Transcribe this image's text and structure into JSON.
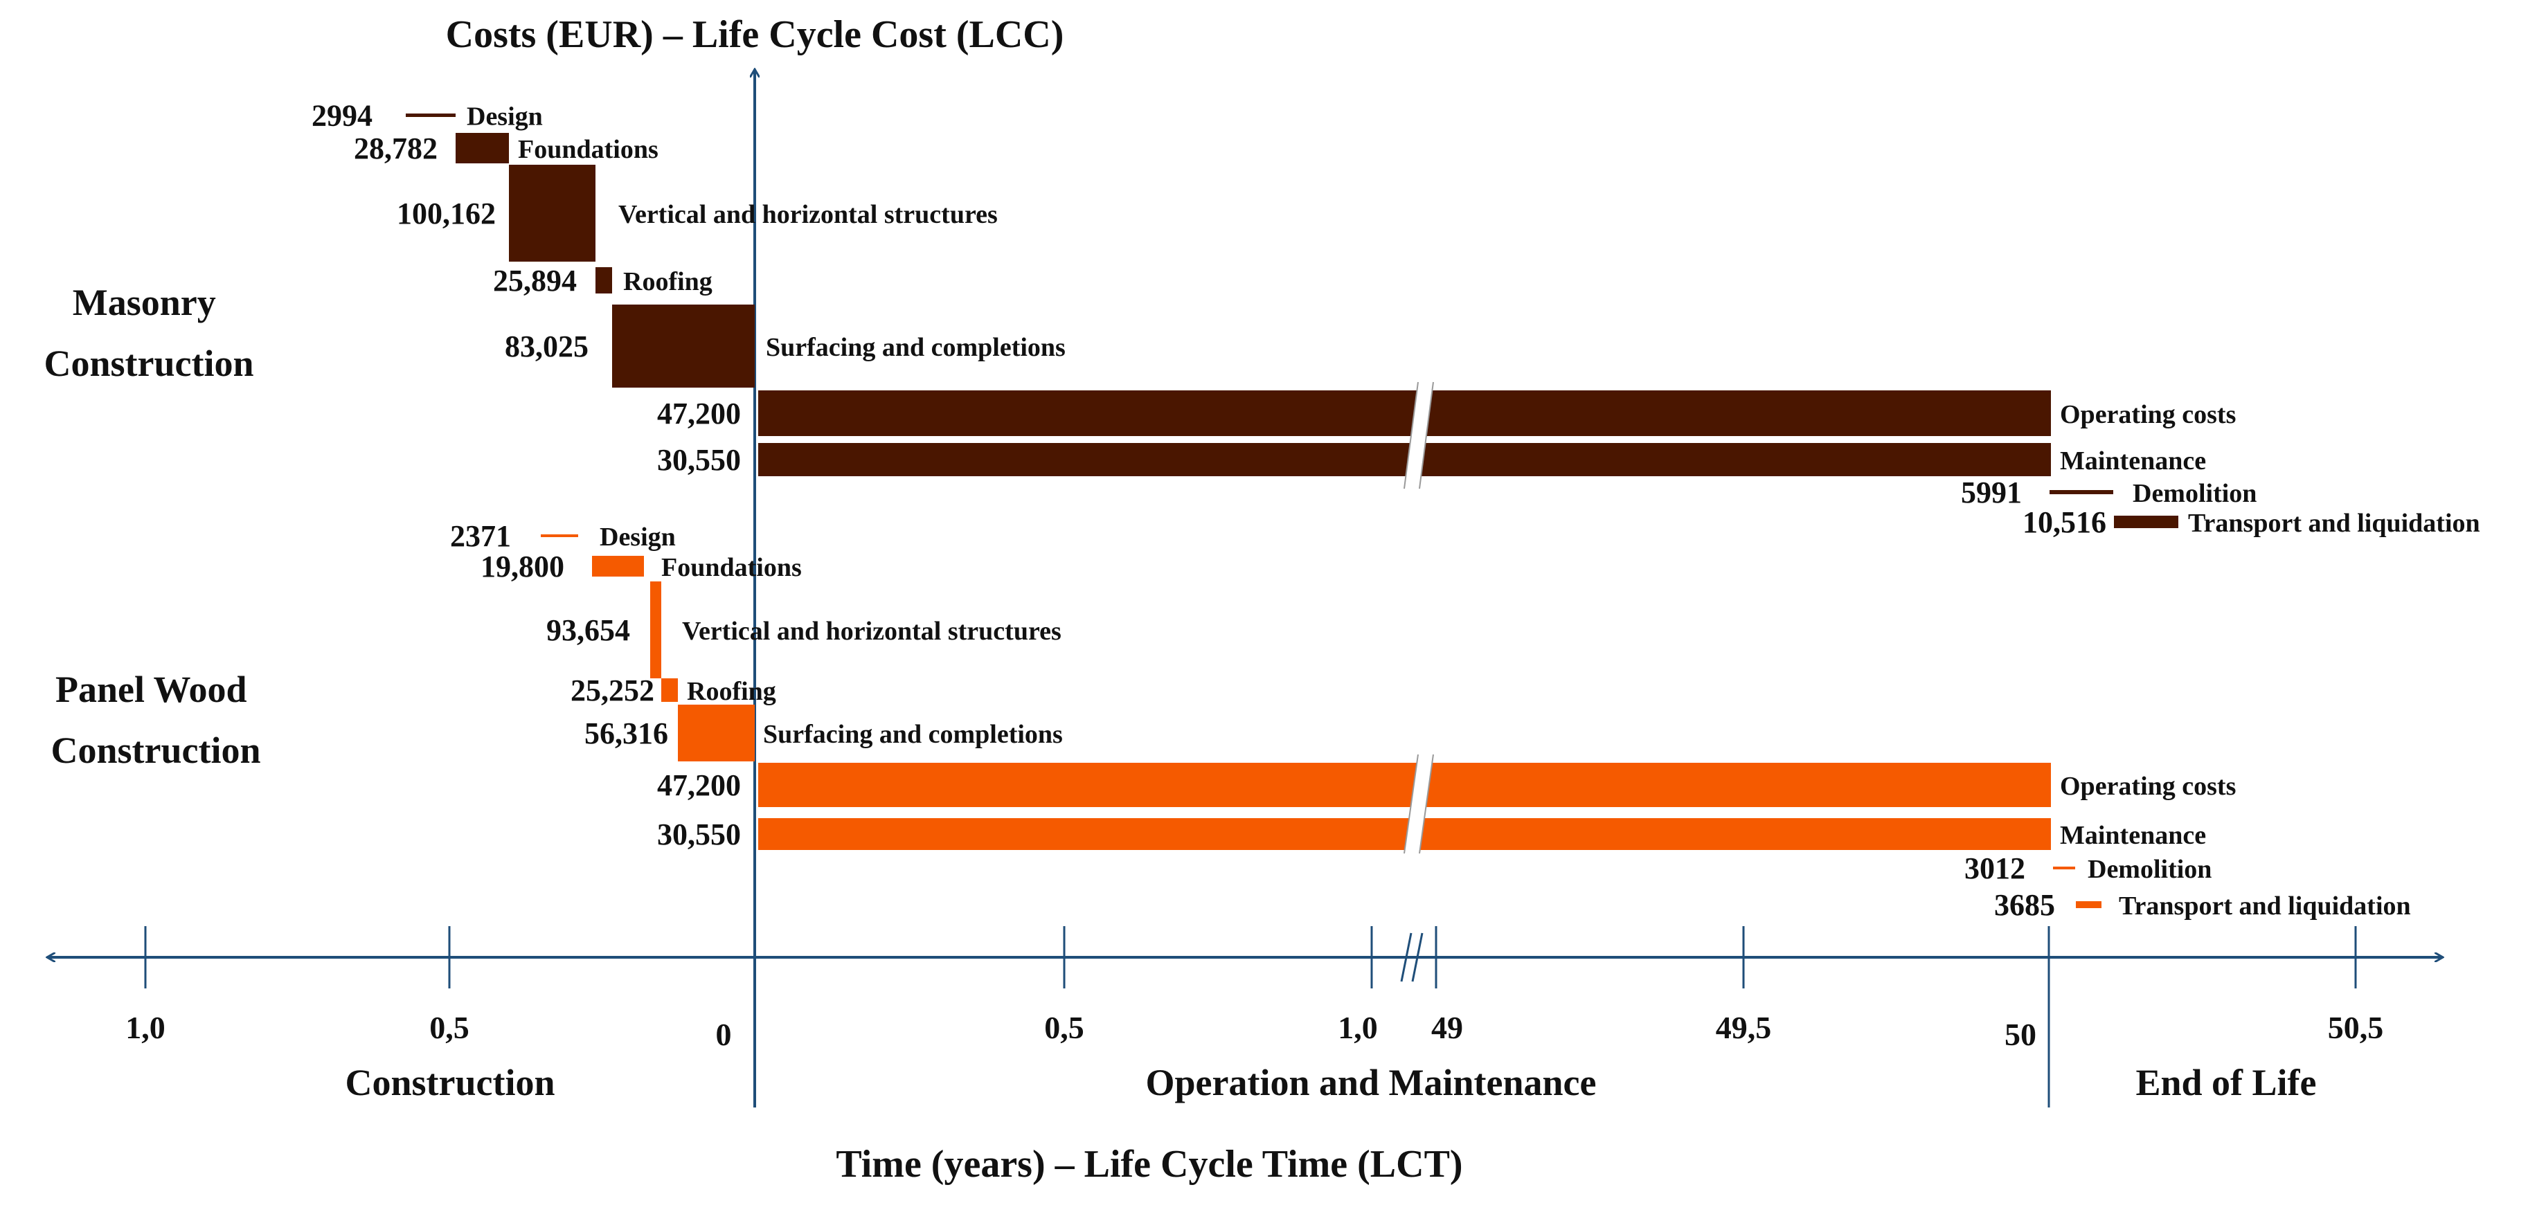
{
  "chart_data": {
    "type": "bar",
    "subtype": "life-cycle cost timeline (gantt-style)",
    "title_y": "Costs (EUR) – Life Cycle Cost (LCC)",
    "title_x": "Time (years) – Life Cycle Time (LCT)",
    "tick_labels": [
      "1,0",
      "0,5",
      "0",
      "0,5",
      "1,0",
      "49",
      "49,5",
      "50",
      "50,5"
    ],
    "phases": [
      "Construction",
      "Operation and Maintenance",
      "End of Life"
    ],
    "colors": {
      "masonry": "#4a1600",
      "wood": "#f55a00",
      "axis": "#1f4e79"
    },
    "series": [
      {
        "name": "Masonry Construction",
        "name_line1": "Masonry",
        "name_line2": "Construction",
        "items": [
          {
            "label": "Design",
            "value": "2994",
            "amount": 2994
          },
          {
            "label": "Foundations",
            "value": "28,782",
            "amount": 28782
          },
          {
            "label": "Vertical and horizontal structures",
            "value": "100,162",
            "amount": 100162
          },
          {
            "label": "Roofing",
            "value": "25,894",
            "amount": 25894
          },
          {
            "label": "Surfacing and completions",
            "value": "83,025",
            "amount": 83025
          },
          {
            "label": "Operating costs",
            "value": "47,200",
            "amount": 47200
          },
          {
            "label": "Maintenance",
            "value": "30,550",
            "amount": 30550
          },
          {
            "label": "Demolition",
            "value": "5991",
            "amount": 5991
          },
          {
            "label": "Transport and liquidation",
            "value": "10,516",
            "amount": 10516
          }
        ]
      },
      {
        "name": "Panel Wood Construction",
        "name_line1": "Panel Wood",
        "name_line2": "Construction",
        "items": [
          {
            "label": "Design",
            "value": "2371",
            "amount": 2371
          },
          {
            "label": "Foundations",
            "value": "19,800",
            "amount": 19800
          },
          {
            "label": "Vertical and horizontal structures",
            "value": "93,654",
            "amount": 93654
          },
          {
            "label": "Roofing",
            "value": "25,252",
            "amount": 25252
          },
          {
            "label": "Surfacing and completions",
            "value": "56,316",
            "amount": 56316
          },
          {
            "label": "Operating costs",
            "value": "47,200",
            "amount": 47200
          },
          {
            "label": "Maintenance",
            "value": "30,550",
            "amount": 30550
          },
          {
            "label": "Demolition",
            "value": "3012",
            "amount": 3012
          },
          {
            "label": "Transport and liquidation",
            "value": "3685",
            "amount": 3685
          }
        ]
      }
    ]
  }
}
